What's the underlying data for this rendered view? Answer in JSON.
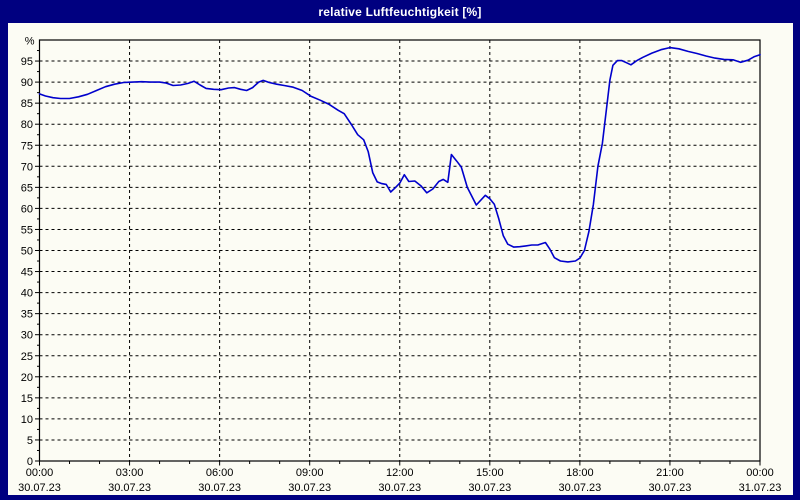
{
  "window": {
    "title": "relative Luftfeuchtigkeit [%]"
  },
  "colors": {
    "frame": "#000080",
    "title_text": "#ffffff",
    "plot_background": "#fcfcf4",
    "line": "#0000cc",
    "grid": "#000000",
    "axis_text": "#000000"
  },
  "chart_data": {
    "type": "line",
    "title": "relative Luftfeuchtigkeit [%]",
    "ylabel": "%",
    "y_unit_label": "%",
    "ylim": [
      0,
      100
    ],
    "y_tick_step": 5,
    "y_minor_tick_step": 2.5,
    "y_tick_labels": [
      0,
      5,
      10,
      15,
      20,
      25,
      30,
      35,
      40,
      45,
      50,
      55,
      60,
      65,
      70,
      75,
      80,
      85,
      90,
      95
    ],
    "x_hours_range": [
      0,
      24
    ],
    "x_minor_tick_step_hours": 1,
    "x_major_step_hours": 3,
    "grid": "dashed",
    "legend": "none",
    "x_major_ticks": [
      {
        "hour": 0,
        "time": "00:00",
        "date": "30.07.23"
      },
      {
        "hour": 3,
        "time": "03:00",
        "date": "30.07.23"
      },
      {
        "hour": 6,
        "time": "06:00",
        "date": "30.07.23"
      },
      {
        "hour": 9,
        "time": "09:00",
        "date": "30.07.23"
      },
      {
        "hour": 12,
        "time": "12:00",
        "date": "30.07.23"
      },
      {
        "hour": 15,
        "time": "15:00",
        "date": "30.07.23"
      },
      {
        "hour": 18,
        "time": "18:00",
        "date": "30.07.23"
      },
      {
        "hour": 21,
        "time": "21:00",
        "date": "30.07.23"
      },
      {
        "hour": 24,
        "time": "00:00",
        "date": "31.07.23"
      }
    ],
    "series": [
      {
        "name": "relative Luftfeuchtigkeit",
        "color": "#0000cc",
        "points": [
          [
            0.0,
            87.2
          ],
          [
            0.2,
            86.7
          ],
          [
            0.45,
            86.3
          ],
          [
            0.7,
            86.1
          ],
          [
            1.0,
            86.1
          ],
          [
            1.3,
            86.5
          ],
          [
            1.6,
            87.1
          ],
          [
            1.9,
            88.0
          ],
          [
            2.2,
            88.9
          ],
          [
            2.5,
            89.5
          ],
          [
            2.8,
            89.9
          ],
          [
            3.1,
            90.0
          ],
          [
            3.4,
            90.1
          ],
          [
            3.7,
            90.0
          ],
          [
            4.0,
            90.0
          ],
          [
            4.2,
            89.8
          ],
          [
            4.45,
            89.2
          ],
          [
            4.7,
            89.3
          ],
          [
            4.95,
            89.7
          ],
          [
            5.15,
            90.2
          ],
          [
            5.35,
            89.3
          ],
          [
            5.55,
            88.5
          ],
          [
            5.8,
            88.3
          ],
          [
            6.05,
            88.2
          ],
          [
            6.3,
            88.6
          ],
          [
            6.5,
            88.7
          ],
          [
            6.7,
            88.3
          ],
          [
            6.9,
            88.0
          ],
          [
            7.1,
            88.7
          ],
          [
            7.3,
            90.0
          ],
          [
            7.45,
            90.4
          ],
          [
            7.65,
            89.9
          ],
          [
            7.9,
            89.5
          ],
          [
            8.15,
            89.2
          ],
          [
            8.45,
            88.8
          ],
          [
            8.75,
            88.0
          ],
          [
            9.05,
            86.6
          ],
          [
            9.35,
            85.7
          ],
          [
            9.65,
            84.7
          ],
          [
            9.95,
            83.3
          ],
          [
            10.15,
            82.5
          ],
          [
            10.4,
            79.8
          ],
          [
            10.6,
            77.5
          ],
          [
            10.8,
            76.3
          ],
          [
            10.95,
            73.5
          ],
          [
            11.1,
            68.5
          ],
          [
            11.25,
            66.3
          ],
          [
            11.4,
            65.9
          ],
          [
            11.55,
            65.7
          ],
          [
            11.7,
            63.9
          ],
          [
            11.85,
            64.9
          ],
          [
            12.0,
            66.0
          ],
          [
            12.15,
            68.0
          ],
          [
            12.3,
            66.4
          ],
          [
            12.5,
            66.5
          ],
          [
            12.7,
            65.4
          ],
          [
            12.9,
            63.7
          ],
          [
            13.1,
            64.6
          ],
          [
            13.3,
            66.4
          ],
          [
            13.45,
            66.9
          ],
          [
            13.6,
            66.2
          ],
          [
            13.72,
            72.8
          ],
          [
            13.9,
            71.2
          ],
          [
            14.05,
            69.8
          ],
          [
            14.25,
            65.0
          ],
          [
            14.55,
            60.8
          ],
          [
            14.85,
            63.1
          ],
          [
            15.0,
            62.3
          ],
          [
            15.15,
            61.0
          ],
          [
            15.3,
            57.5
          ],
          [
            15.45,
            53.5
          ],
          [
            15.6,
            51.5
          ],
          [
            15.8,
            50.8
          ],
          [
            16.0,
            50.9
          ],
          [
            16.2,
            51.1
          ],
          [
            16.4,
            51.3
          ],
          [
            16.6,
            51.3
          ],
          [
            16.85,
            51.9
          ],
          [
            17.0,
            50.3
          ],
          [
            17.15,
            48.3
          ],
          [
            17.35,
            47.5
          ],
          [
            17.6,
            47.3
          ],
          [
            17.85,
            47.5
          ],
          [
            18.0,
            48.2
          ],
          [
            18.15,
            50.0
          ],
          [
            18.3,
            54.5
          ],
          [
            18.45,
            61.0
          ],
          [
            18.6,
            70.0
          ],
          [
            18.75,
            75.5
          ],
          [
            18.9,
            84.5
          ],
          [
            19.0,
            90.5
          ],
          [
            19.1,
            94.0
          ],
          [
            19.25,
            95.1
          ],
          [
            19.4,
            95.1
          ],
          [
            19.55,
            94.6
          ],
          [
            19.7,
            94.1
          ],
          [
            19.9,
            95.1
          ],
          [
            20.1,
            95.9
          ],
          [
            20.4,
            96.9
          ],
          [
            20.7,
            97.7
          ],
          [
            21.0,
            98.2
          ],
          [
            21.3,
            97.9
          ],
          [
            21.6,
            97.3
          ],
          [
            21.9,
            96.8
          ],
          [
            22.2,
            96.2
          ],
          [
            22.5,
            95.7
          ],
          [
            22.8,
            95.4
          ],
          [
            23.1,
            95.3
          ],
          [
            23.35,
            94.7
          ],
          [
            23.6,
            95.2
          ],
          [
            23.8,
            96.0
          ],
          [
            24.0,
            96.5
          ]
        ]
      }
    ]
  }
}
